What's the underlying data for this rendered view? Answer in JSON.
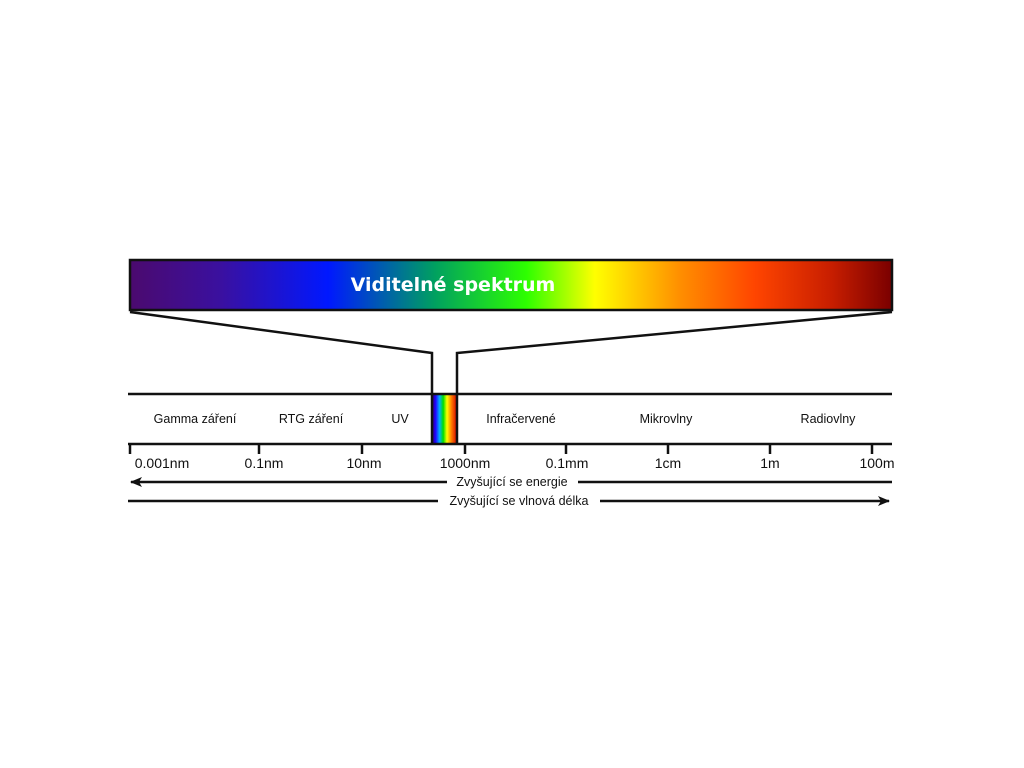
{
  "banner": {
    "title": "Viditelné spektrum"
  },
  "regions": [
    {
      "label": "Gamma záření"
    },
    {
      "label": "RTG záření"
    },
    {
      "label": "UV"
    },
    {
      "label": "Infračervené"
    },
    {
      "label": "Mikrovlny"
    },
    {
      "label": "Radiovlny"
    }
  ],
  "ticks": [
    {
      "label": "0.001nm"
    },
    {
      "label": "0.1nm"
    },
    {
      "label": "10nm"
    },
    {
      "label": "1000nm"
    },
    {
      "label": "0.1mm"
    },
    {
      "label": "1cm"
    },
    {
      "label": "1m"
    },
    {
      "label": "100m"
    }
  ],
  "arrows": {
    "energy_label": "Zvyšující se energie",
    "energy_direction": "left",
    "wavelength_label": "Zvyšující se vlnová délka",
    "wavelength_direction": "right"
  },
  "colors": {
    "spectrum": [
      "#4b0a6e",
      "#3a10a0",
      "#0018ff",
      "#00a060",
      "#2dff00",
      "#ffff00",
      "#ff9000",
      "#ff4500",
      "#c81e00",
      "#7a0000"
    ],
    "line": "#111111"
  }
}
